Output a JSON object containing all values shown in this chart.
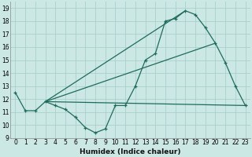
{
  "xlabel": "Humidex (Indice chaleur)",
  "bg_color": "#cce8e4",
  "grid_color": "#aacfcb",
  "line_color": "#1e6b5e",
  "xlim": [
    -0.5,
    23.5
  ],
  "ylim": [
    9,
    19.5
  ],
  "yticks": [
    9,
    10,
    11,
    12,
    13,
    14,
    15,
    16,
    17,
    18,
    19
  ],
  "xticks": [
    0,
    1,
    2,
    3,
    4,
    5,
    6,
    7,
    8,
    9,
    10,
    11,
    12,
    13,
    14,
    15,
    16,
    17,
    18,
    19,
    20,
    21,
    22,
    23
  ],
  "curve1_x": [
    0,
    1,
    2,
    3,
    4,
    5,
    6,
    7,
    8,
    9,
    10,
    11,
    12,
    13,
    14,
    15,
    16,
    17,
    18,
    19,
    20,
    21,
    22,
    23
  ],
  "curve1_y": [
    12.5,
    11.1,
    11.1,
    11.8,
    11.5,
    11.2,
    10.6,
    9.8,
    9.4,
    9.7,
    11.5,
    11.5,
    13.0,
    15.0,
    15.5,
    18.0,
    18.2,
    18.8,
    18.5,
    17.5,
    16.3,
    14.8,
    13.0,
    11.5
  ],
  "line2_x": [
    3,
    23
  ],
  "line2_y": [
    11.8,
    11.5
  ],
  "line3_x": [
    3,
    20
  ],
  "line3_y": [
    11.8,
    16.3
  ],
  "line4_x": [
    3,
    17
  ],
  "line4_y": [
    11.8,
    18.8
  ]
}
